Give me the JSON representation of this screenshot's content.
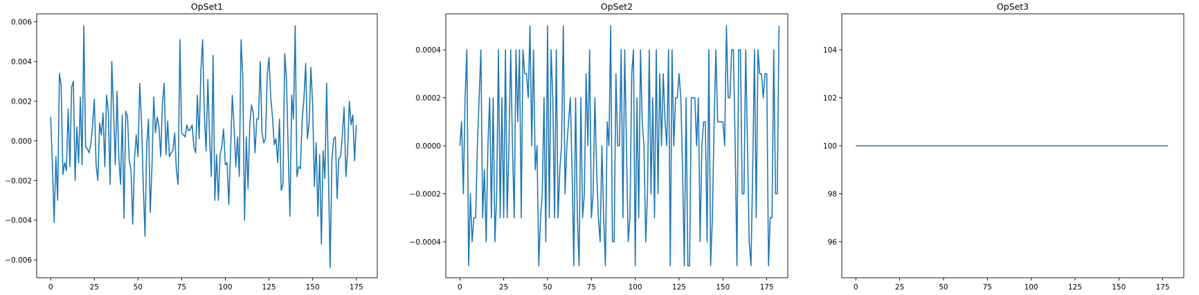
{
  "colors": {
    "line": "#1f77b4",
    "background": "#ffffff",
    "axes": "#000000"
  },
  "chart_data": [
    {
      "type": "line",
      "title": "OpSet1",
      "xlabel": "",
      "ylabel": "",
      "xlim": [
        -8,
        187
      ],
      "ylim": [
        -0.0069,
        0.0064
      ],
      "xticks": [
        0,
        25,
        50,
        75,
        100,
        125,
        150,
        175
      ],
      "xtick_labels": [
        "0",
        "25",
        "50",
        "75",
        "100",
        "125",
        "150",
        "175"
      ],
      "yticks": [
        -0.006,
        -0.004,
        -0.002,
        0.0,
        0.002,
        0.004,
        0.006
      ],
      "ytick_labels": [
        "−0.006",
        "−0.004",
        "−0.002",
        "0.000",
        "0.002",
        "0.004",
        "0.006"
      ],
      "grid": false,
      "series": [
        {
          "x0": 0,
          "dx": 1,
          "values": [
            0.0012,
            -0.0012,
            -0.0041,
            -0.0008,
            -0.003,
            0.0034,
            0.0028,
            -0.0017,
            -0.0011,
            -0.0015,
            0.0016,
            -0.0013,
            0.0027,
            0.003,
            -0.002,
            0.0007,
            -0.0011,
            0.0022,
            -0.0012,
            0.0058,
            -0.0003,
            -0.0004,
            -0.0006,
            -0.0002,
            0.0008,
            0.0021,
            -0.0012,
            -0.002,
            0.0009,
            0.0003,
            0.0014,
            -0.0013,
            0.0023,
            0.0015,
            -0.0022,
            0.004,
            0.0015,
            -0.0012,
            0.0025,
            -0.0008,
            -0.0022,
            0.0013,
            -0.0039,
            0.0015,
            0.0012,
            -0.001,
            -0.0015,
            -0.0042,
            -0.0009,
            0.0003,
            -0.0008,
            0.0029,
            0.001,
            -0.0022,
            -0.0048,
            -0.0002,
            0.0011,
            -0.0036,
            -0.0013,
            0.0022,
            0.0004,
            0.0012,
            0.0007,
            -0.0008,
            0.0019,
            0.0029,
            -0.0007,
            0.001,
            -0.0008,
            -0.0006,
            -0.0005,
            0.0004,
            -0.0015,
            -0.0022,
            0.0051,
            0.0004,
            0.0003,
            0.0002,
            0.0008,
            0.0005,
            0.0006,
            0.0008,
            -0.0003,
            -0.0006,
            0.0023,
            0.0001,
            0.0035,
            0.0051,
            0.0013,
            -0.0005,
            0.0031,
            0.0001,
            -0.0018,
            0.0043,
            -0.003,
            -0.0007,
            -0.003,
            -0.0007,
            -0.0003,
            0.0006,
            -0.0012,
            -0.0011,
            -0.0032,
            -0.0005,
            0.0023,
            0.0007,
            -0.0013,
            0.0002,
            -0.0018,
            0.0051,
            0.0032,
            -0.004,
            0.0002,
            -0.0024,
            0.0008,
            0.0018,
            0.0014,
            -0.0006,
            0.0011,
            0.0011,
            0.004,
            0.0004,
            -0.0001,
            0.0001,
            0.0033,
            0.0042,
            0.0022,
            0.0012,
            -0.0002,
            0.0001,
            -0.0011,
            0.0011,
            -0.0025,
            -0.0022,
            0.0044,
            0.0031,
            -0.0005,
            -0.0038,
            0.0023,
            0.0011,
            0.0058,
            -0.0018,
            -0.0013,
            -0.0014,
            0.0011,
            0.0021,
            0.0039,
            0.0001,
            0.0009,
            0.0037,
            0.0018,
            -0.0023,
            -0.0001,
            -0.0038,
            -0.0007,
            -0.0052,
            -0.0005,
            -0.0019,
            0.0029,
            -0.0015,
            -0.0064,
            -0.001,
            0.0001,
            0.0002,
            -0.0029,
            -0.0009,
            -0.0008,
            0.0003,
            0.0017,
            -0.0018,
            -0.0006,
            0.002,
            0.0008,
            0.0013,
            -0.001,
            0.0008
          ]
        }
      ]
    },
    {
      "type": "line",
      "title": "OpSet2",
      "xlabel": "",
      "ylabel": "",
      "xlim": [
        -8,
        187
      ],
      "ylim": [
        -0.00055,
        0.00055
      ],
      "xticks": [
        0,
        25,
        50,
        75,
        100,
        125,
        150,
        175
      ],
      "xtick_labels": [
        "0",
        "25",
        "50",
        "75",
        "100",
        "125",
        "150",
        "175"
      ],
      "yticks": [
        -0.0004,
        -0.0002,
        0.0,
        0.0002,
        0.0004
      ],
      "ytick_labels": [
        "−0.0004",
        "−0.0002",
        "0.0000",
        "0.0002",
        "0.0004"
      ],
      "grid": false,
      "series": [
        {
          "x0": 0,
          "dx": 1,
          "values": [
            0.0,
            0.0001,
            -0.0002,
            0.0002,
            0.0004,
            -0.0005,
            -0.0002,
            -0.0004,
            -0.0003,
            -0.0003,
            0.0,
            0.0002,
            0.0004,
            -0.0003,
            -0.0001,
            -0.0004,
            0.0,
            0.0002,
            -0.0003,
            0.0002,
            -0.0004,
            -0.0002,
            0.0004,
            -0.0003,
            0.0002,
            -0.0003,
            0.0004,
            -0.0003,
            0.0,
            0.0004,
            0.0,
            -0.0003,
            0.0004,
            0.0001,
            0.0004,
            -0.0003,
            0.0004,
            0.0003,
            0.0003,
            0.0002,
            0.0005,
            0.0,
            0.0004,
            -0.0001,
            0.0,
            -0.0005,
            -0.0003,
            -0.0002,
            0.0002,
            -0.0004,
            0.0005,
            -0.0003,
            0.0004,
            0.0002,
            -0.0003,
            0.0004,
            -0.0003,
            -0.0001,
            0.0,
            0.0005,
            -0.0002,
            0.0,
            0.0001,
            0.0002,
            -0.0001,
            -0.0005,
            0.0002,
            -0.0003,
            -0.0005,
            0.0002,
            -0.0003,
            -0.0002,
            0.0003,
            0.0,
            0.0004,
            -0.0003,
            -0.0002,
            0.0002,
            -0.0001,
            -0.0003,
            -0.0004,
            0.0,
            -0.0003,
            -0.0005,
            0.0001,
            0.0,
            0.0005,
            -0.0004,
            -0.0004,
            0.0003,
            0.0,
            0.0,
            0.0004,
            -0.0003,
            0.0004,
            0.0,
            -0.0004,
            -0.0003,
            0.0003,
            0.0004,
            -0.0005,
            0.0002,
            -0.0003,
            0.0004,
            0.0001,
            0.0,
            -0.0004,
            -0.0002,
            0.0004,
            -0.0002,
            0.0002,
            -0.0003,
            0.0004,
            -0.0002,
            0.0003,
            0.0,
            0.0003,
            0.0001,
            0.0,
            0.0004,
            -0.0005,
            0.0004,
            0.0,
            0.0002,
            0.0002,
            0.0003,
            0.0002,
            -0.0001,
            -0.0005,
            0.0002,
            -0.0005,
            -0.0005,
            0.0002,
            0.0002,
            0.0002,
            0.0,
            0.0002,
            -0.0004,
            0.0,
            0.0001,
            0.0001,
            -0.0004,
            0.0004,
            -0.0005,
            -0.0003,
            0.0001,
            0.0004,
            0.0001,
            0.0001,
            0.0001,
            0.0001,
            0.0,
            0.0005,
            0.0002,
            0.0002,
            0.0004,
            0.0004,
            0.0,
            -0.0005,
            0.0004,
            0.0004,
            -0.0002,
            -0.0002,
            0.0004,
            0.0,
            -0.0004,
            -0.0005,
            -0.0001,
            0.0004,
            -0.0003,
            0.0004,
            0.0003,
            0.0003,
            0.0002,
            0.0003,
            0.0003,
            -0.0005,
            -0.0003,
            -0.0003,
            0.0004,
            -0.0002,
            -0.0002,
            0.0005
          ]
        }
      ]
    },
    {
      "type": "line",
      "title": "OpSet3",
      "xlabel": "",
      "ylabel": "",
      "xlim": [
        -8,
        187
      ],
      "ylim": [
        94.5,
        105.5
      ],
      "xticks": [
        0,
        25,
        50,
        75,
        100,
        125,
        150,
        175
      ],
      "xtick_labels": [
        "0",
        "25",
        "50",
        "75",
        "100",
        "125",
        "150",
        "175"
      ],
      "yticks": [
        96,
        98,
        100,
        102,
        104
      ],
      "ytick_labels": [
        "96",
        "98",
        "100",
        "102",
        "104"
      ],
      "grid": false,
      "series": [
        {
          "x": [
            0,
            178
          ],
          "values": [
            100,
            100
          ]
        }
      ]
    }
  ]
}
